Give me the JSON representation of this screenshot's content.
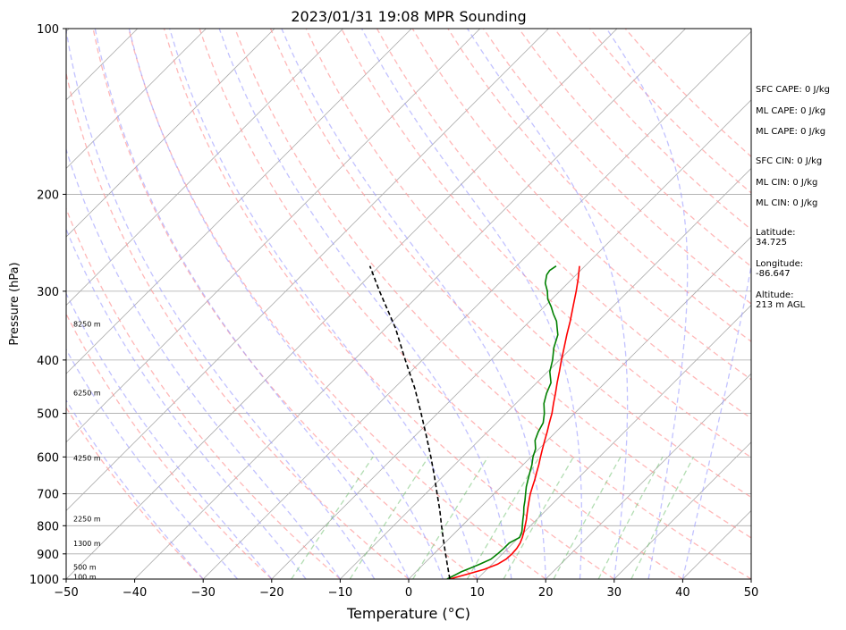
{
  "chart_data": {
    "type": "line",
    "title": "2023/01/31 19:08 MPR Sounding",
    "xlabel": "Temperature (°C)",
    "ylabel": "Pressure (hPa)",
    "xlim": [
      -50,
      50
    ],
    "ylim": [
      1000,
      100
    ],
    "y_scale": "log",
    "grid": true,
    "x_ticks": [
      "−50",
      "−40",
      "−30",
      "−20",
      "−10",
      "0",
      "10",
      "20",
      "30",
      "40",
      "50"
    ],
    "y_ticks": [
      "100",
      "200",
      "300",
      "400",
      "500",
      "600",
      "700",
      "800",
      "900",
      "1000"
    ],
    "height_labels": [
      {
        "p": 995,
        "text": "100 m"
      },
      {
        "p": 955,
        "text": "500 m"
      },
      {
        "p": 865,
        "text": "1300 m"
      },
      {
        "p": 780,
        "text": "2250 m"
      },
      {
        "p": 605,
        "text": "4250 m"
      },
      {
        "p": 460,
        "text": "6250 m"
      },
      {
        "p": 345,
        "text": "8250 m"
      }
    ],
    "series": [
      {
        "p": [
          1000,
          980,
          960,
          940,
          920,
          900,
          880,
          860,
          840,
          820,
          800,
          780,
          760,
          740,
          720,
          700,
          680,
          660,
          640,
          620,
          600,
          580,
          560,
          540,
          520,
          500,
          480,
          460,
          440,
          420,
          400,
          380,
          360,
          340,
          320,
          300,
          285,
          270
        ],
        "values": [
          6.0,
          7.8,
          9.6,
          10.8,
          11.3,
          11.4,
          11.3,
          11.0,
          10.5,
          9.9,
          9.2,
          8.5,
          7.7,
          6.9,
          6.1,
          5.3,
          4.6,
          3.9,
          3.1,
          2.3,
          1.4,
          0.5,
          -0.4,
          -1.3,
          -2.3,
          -3.3,
          -4.5,
          -5.7,
          -7.0,
          -8.3,
          -9.7,
          -11.1,
          -12.6,
          -14.1,
          -15.8,
          -17.6,
          -19.1,
          -20.8
        ],
        "color": "#ff0000"
      },
      {
        "p": [
          1000,
          985,
          970,
          955,
          940,
          920,
          900,
          880,
          860,
          840,
          820,
          800,
          780,
          760,
          740,
          720,
          700,
          680,
          660,
          640,
          620,
          600,
          580,
          560,
          540,
          520,
          500,
          480,
          460,
          440,
          420,
          400,
          380,
          360,
          350,
          340,
          330,
          320,
          310,
          300,
          290,
          280,
          275,
          270
        ],
        "values": [
          5.6,
          6.1,
          6.6,
          7.4,
          8.2,
          9.1,
          9.3,
          9.4,
          9.4,
          10.1,
          9.6,
          8.8,
          8.0,
          7.2,
          6.3,
          5.5,
          4.6,
          3.7,
          2.9,
          2.1,
          1.3,
          0.3,
          -0.5,
          -1.8,
          -2.6,
          -3.2,
          -4.4,
          -5.9,
          -7.0,
          -7.9,
          -9.7,
          -11.0,
          -12.6,
          -13.9,
          -15.0,
          -16.1,
          -17.6,
          -19.0,
          -20.6,
          -21.8,
          -23.3,
          -24.3,
          -24.5,
          -24.2
        ],
        "color": "#008000"
      },
      {
        "p": [
          1000,
          950,
          900,
          850,
          800,
          750,
          700,
          650,
          600,
          550,
          500,
          450,
          400,
          350,
          300,
          270
        ],
        "values": [
          6.0,
          3.9,
          1.7,
          -0.6,
          -3.0,
          -5.5,
          -8.3,
          -11.3,
          -14.6,
          -18.3,
          -22.4,
          -27.0,
          -32.5,
          -38.6,
          -46.3,
          -51.4
        ],
        "color": "#000000",
        "dashed": true
      }
    ]
  },
  "side_panel": {
    "sfc_cape": "SFC CAPE: 0 J/kg",
    "ml_cape": "ML CAPE: 0 J/kg",
    "ml_cape_2": "ML CAPE: 0 J/kg",
    "sfc_cin": "SFC CIN: 0 J/kg",
    "ml_cin": "ML CIN: 0 J/kg",
    "ml_cin_2": "ML CIN: 0 J/kg",
    "latitude_label": "Latitude:",
    "latitude_value": "34.725",
    "longitude_label": "Longitude:",
    "longitude_value": "-86.647",
    "altitude_label": "Altitude:",
    "altitude_value": "213 m AGL"
  }
}
